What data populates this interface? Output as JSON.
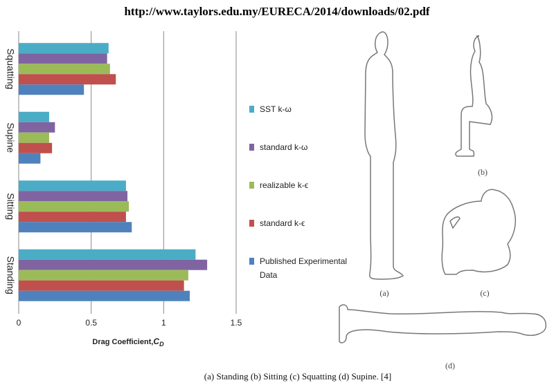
{
  "header": {
    "url": "http://www.taylors.edu.my/EURECA/2014/downloads/02.pdf"
  },
  "chart_data": {
    "type": "hbar",
    "categories": [
      "Squatting",
      "Supine",
      "Sitting",
      "Standing"
    ],
    "series": [
      {
        "name": "SST k-ω",
        "color": "#4bacc6",
        "values": [
          0.62,
          0.21,
          0.74,
          1.22
        ]
      },
      {
        "name": "standard k-ω",
        "color": "#8064a2",
        "values": [
          0.61,
          0.25,
          0.75,
          1.3
        ]
      },
      {
        "name": "realizable k-ϵ",
        "color": "#9bbb59",
        "values": [
          0.63,
          0.21,
          0.76,
          1.17
        ]
      },
      {
        "name": "standard k-ϵ",
        "color": "#c0504d",
        "values": [
          0.67,
          0.23,
          0.74,
          1.14
        ]
      },
      {
        "name": "Published Experimental Data",
        "color": "#4f81bd",
        "values": [
          0.45,
          0.15,
          0.78,
          1.18
        ]
      }
    ],
    "xlim": [
      0,
      1.5
    ],
    "xticks": [
      0,
      0.5,
      1,
      1.5
    ],
    "xlabel": "Drag Coefficient,",
    "xlabel_symbol": "C",
    "xlabel_subscript": "D",
    "grid": true
  },
  "figure": {
    "labels": [
      "(a)",
      "(b)",
      "(c)",
      "(d)"
    ],
    "caption": "(a) Standing (b) Sitting (c) Squatting (d) Supine. [4]"
  }
}
